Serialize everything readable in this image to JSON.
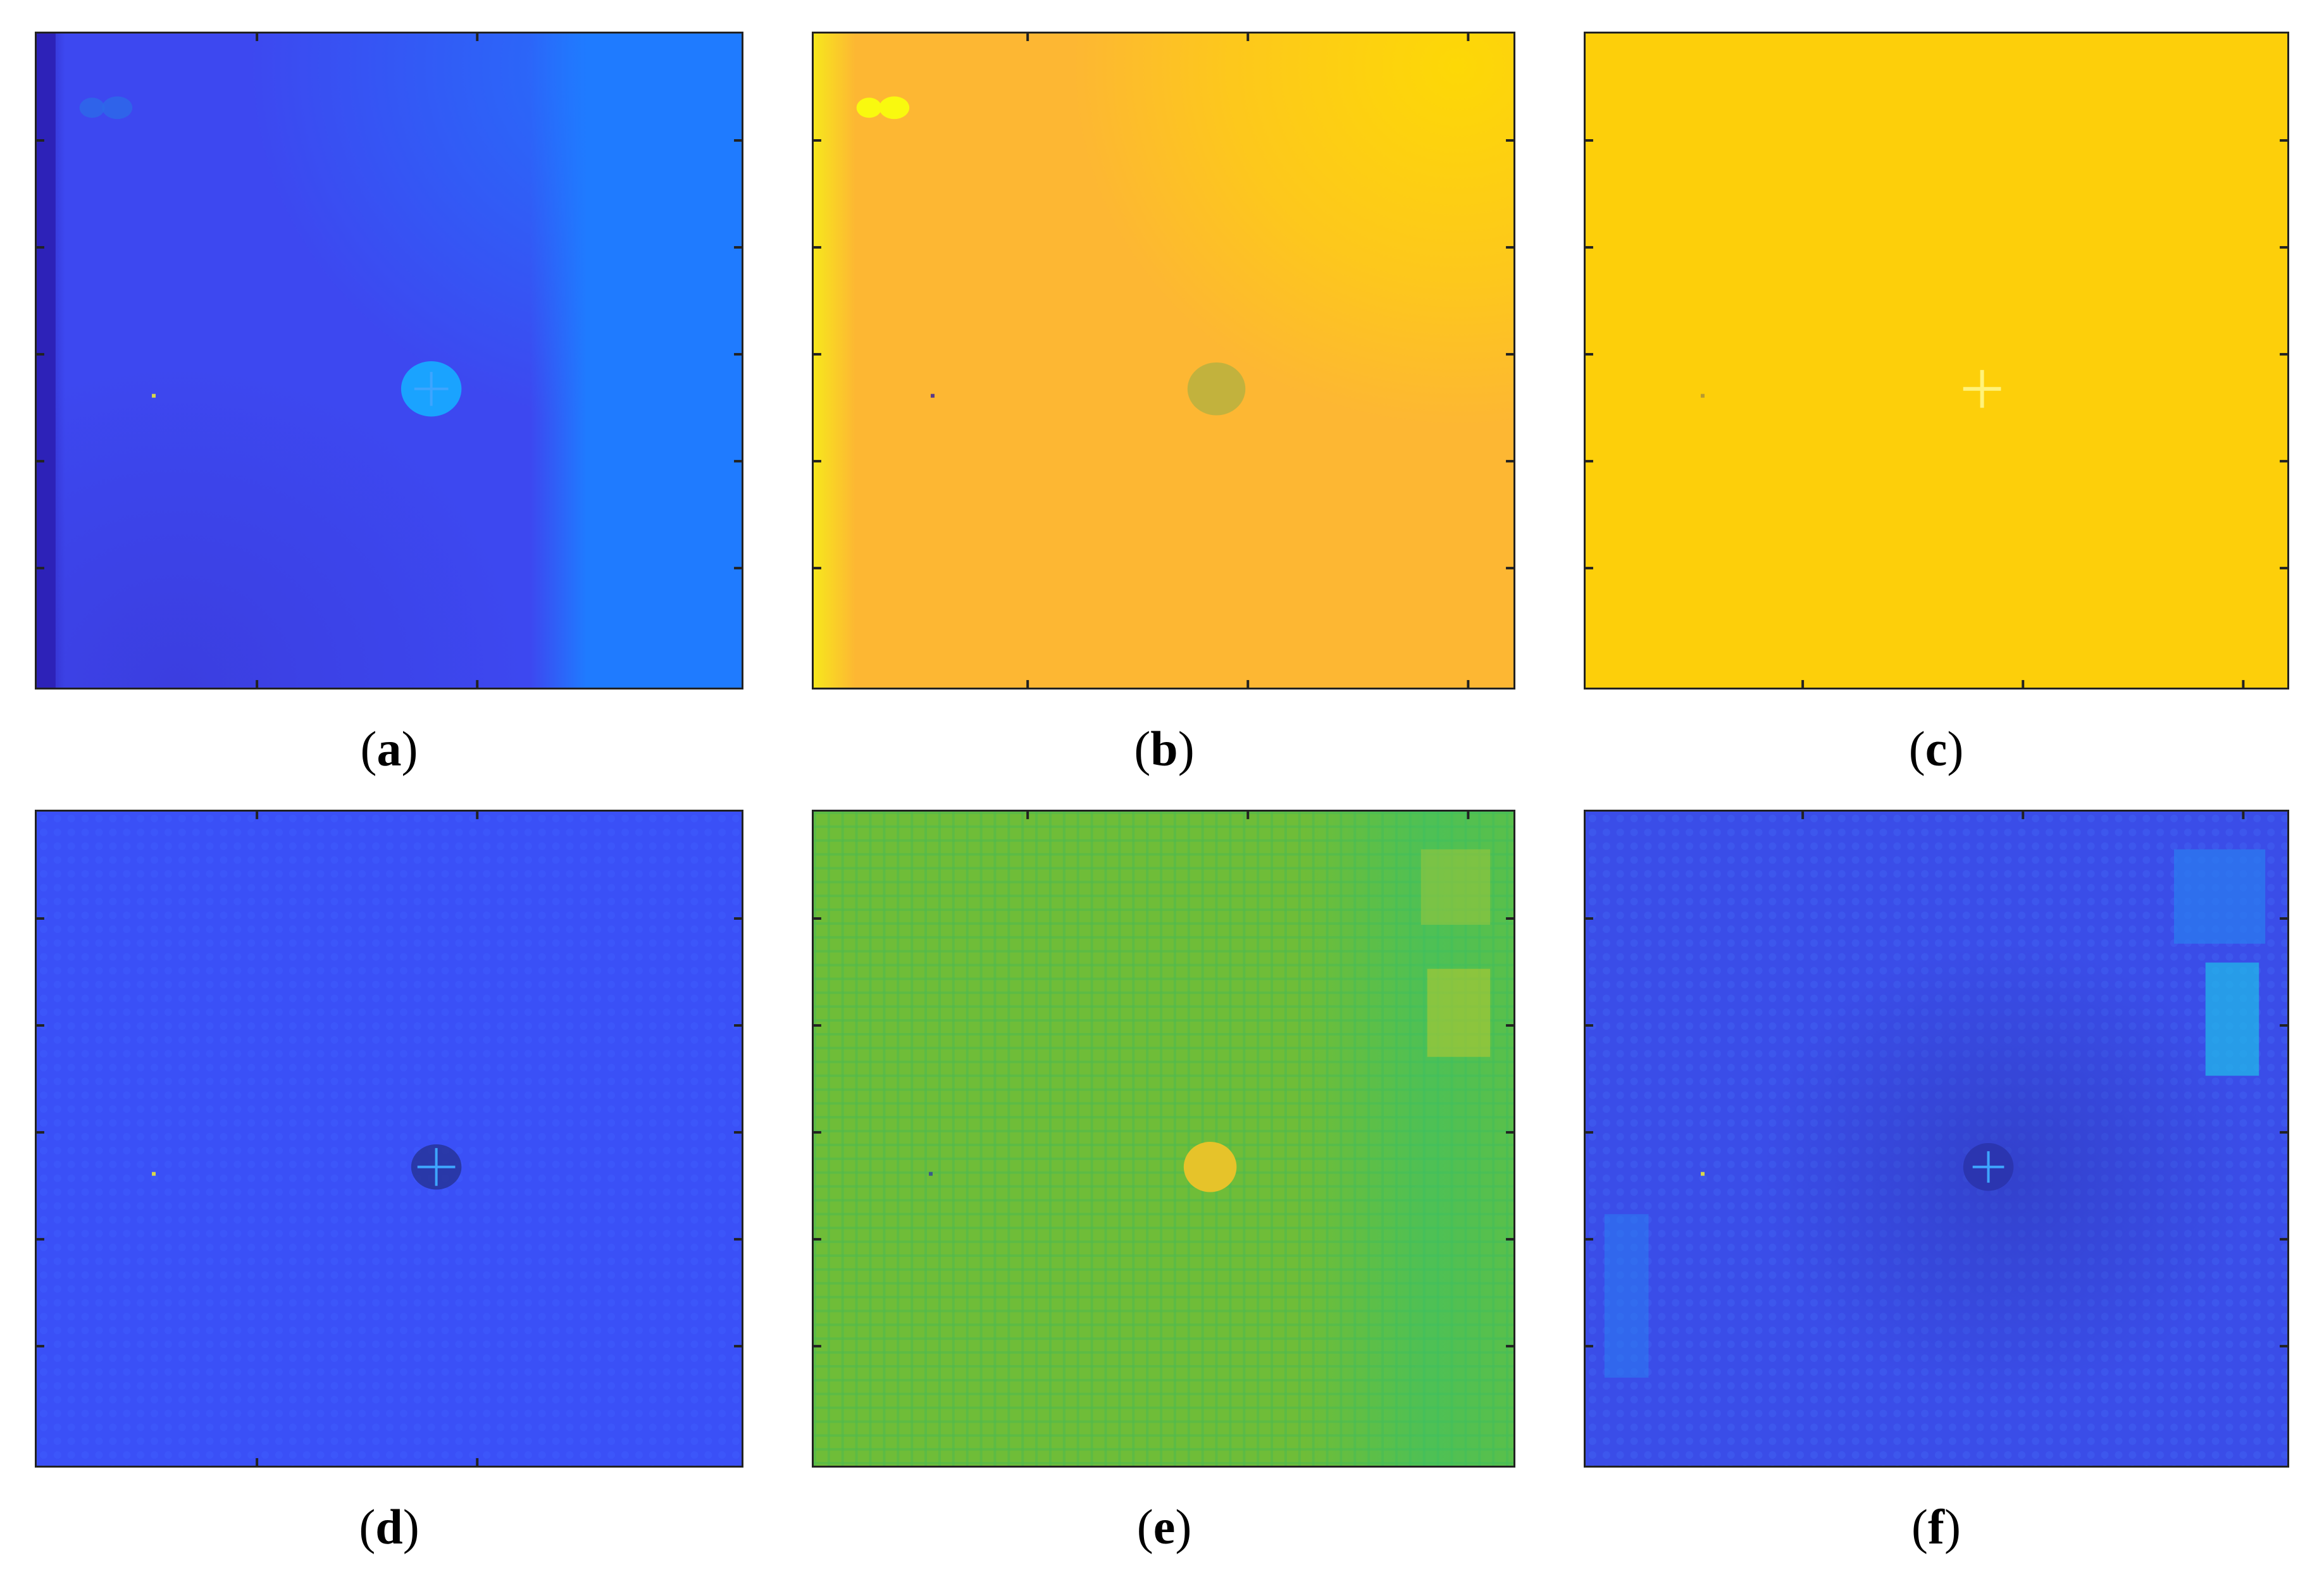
{
  "figure": {
    "panels": [
      {
        "id": "a",
        "caption_open": "(",
        "caption_label": "a",
        "caption_close": ")",
        "colors": {
          "base": "#3d48f0",
          "left_edge": "#2d22b8",
          "right_band": "#1f7bff",
          "center_spot": "#1aa3ff",
          "spots": "#2c6ae8"
        }
      },
      {
        "id": "b",
        "caption_open": "(",
        "caption_label": "b",
        "caption_close": ")",
        "colors": {
          "base": "#fdb733",
          "right_band": "#fdd806",
          "center_spot": "#b3b040",
          "spots": "#f9f90f",
          "left_edge": "#f6ec1a"
        }
      },
      {
        "id": "c",
        "caption_open": "(",
        "caption_label": "c",
        "caption_close": ")",
        "colors": {
          "base": "#fdcf0a",
          "center_spot": "#fff27a"
        }
      },
      {
        "id": "d",
        "caption_open": "(",
        "caption_label": "d",
        "caption_close": ")",
        "colors": {
          "base": "#3a50f7",
          "center_spot": "#24308e",
          "center_hi": "#3ea5ff"
        }
      },
      {
        "id": "e",
        "caption_open": "(",
        "caption_label": "e",
        "caption_close": ")",
        "colors": {
          "base": "#6fbd38",
          "right_band": "#32c46d",
          "center_spot": "#e6c32a",
          "grid": "#4fb94f"
        }
      },
      {
        "id": "f",
        "caption_open": "(",
        "caption_label": "f",
        "caption_close": ")",
        "colors": {
          "base": "#3a4de8",
          "right_band": "#21b7e8",
          "center_spot": "#2b35b0",
          "patch": "#2a7ef0"
        }
      }
    ]
  }
}
